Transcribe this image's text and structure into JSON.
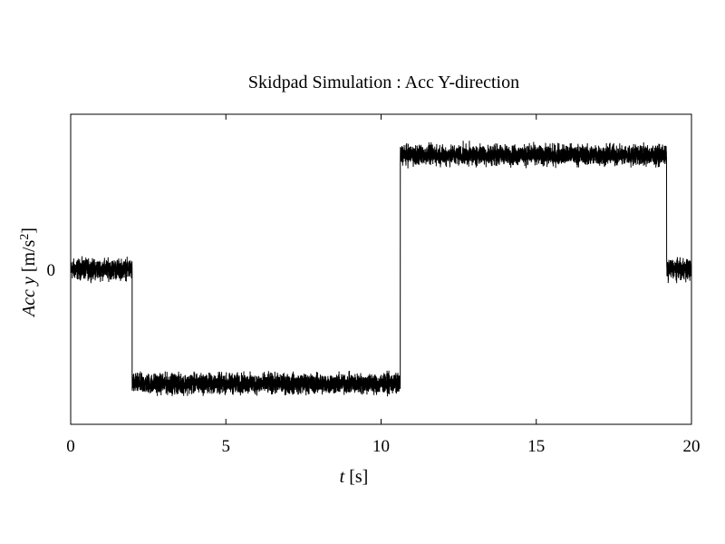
{
  "chart_data": {
    "type": "line",
    "title": "Skidpad Simulation : Acc Y-direction",
    "xlabel": {
      "var": "t",
      "unit": " [s]"
    },
    "ylabel": {
      "var": "Acc y",
      "unit_pre": " [m/s",
      "unit_exp": "2",
      "unit_post": "]"
    },
    "xlim": [
      0,
      20
    ],
    "ylim": [
      -1.45,
      1.45
    ],
    "x_ticks": [
      0,
      5,
      10,
      15,
      20
    ],
    "y_ticks": [
      0
    ],
    "grid": false,
    "legend": "none",
    "series": [
      {
        "color": "#000000",
        "segments": [
          {
            "t_start": 0.0,
            "t_end": 1.98,
            "level": 0.0
          },
          {
            "t_start": 1.98,
            "t_end": 10.62,
            "level": -1.07
          },
          {
            "t_start": 10.62,
            "t_end": 19.2,
            "level": 1.07
          },
          {
            "t_start": 19.2,
            "t_end": 20.0,
            "level": 0.0
          }
        ],
        "noise_amplitude": 0.07
      }
    ]
  }
}
